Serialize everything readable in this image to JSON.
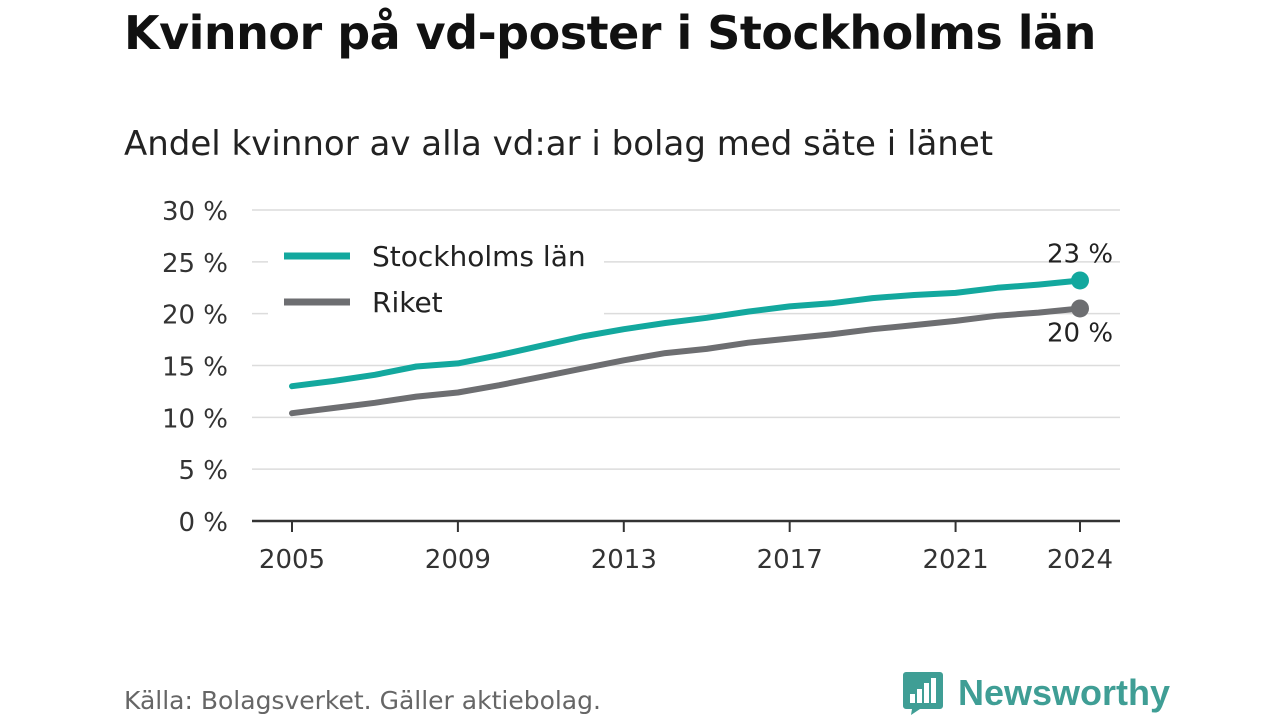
{
  "header": {
    "title": "Kvinnor på vd-poster i Stockholms län",
    "subtitle": "Andel kvinnor av alla vd:ar i bolag med säte i länet"
  },
  "footer": {
    "source": "Källa: Bolagsverket. Gäller aktiebolag.",
    "brand": "Newsworthy",
    "brand_icon": "bar-chart-speech-bubble-icon"
  },
  "chart_data": {
    "type": "line",
    "x": [
      2005,
      2006,
      2007,
      2008,
      2009,
      2010,
      2011,
      2012,
      2013,
      2014,
      2015,
      2016,
      2017,
      2018,
      2019,
      2020,
      2021,
      2022,
      2023,
      2024
    ],
    "series": [
      {
        "name": "Stockholms län",
        "color": "#13a89e",
        "values": [
          13.0,
          13.5,
          14.1,
          14.9,
          15.2,
          16.0,
          16.9,
          17.8,
          18.5,
          19.1,
          19.6,
          20.2,
          20.7,
          21.0,
          21.5,
          21.8,
          22.0,
          22.5,
          22.8,
          23.2
        ],
        "end_label": "23 %"
      },
      {
        "name": "Riket",
        "color": "#6d6e71",
        "values": [
          10.4,
          10.9,
          11.4,
          12.0,
          12.4,
          13.1,
          13.9,
          14.7,
          15.5,
          16.2,
          16.6,
          17.2,
          17.6,
          18.0,
          18.5,
          18.9,
          19.3,
          19.8,
          20.1,
          20.5
        ],
        "end_label": "20 %"
      }
    ],
    "yticks": [
      {
        "value": 0,
        "label": "0 %"
      },
      {
        "value": 5,
        "label": "5 %"
      },
      {
        "value": 10,
        "label": "10 %"
      },
      {
        "value": 15,
        "label": "15 %"
      },
      {
        "value": 20,
        "label": "20 %"
      },
      {
        "value": 25,
        "label": "25 %"
      },
      {
        "value": 30,
        "label": "30 %"
      }
    ],
    "xticks": [
      {
        "value": 2005,
        "label": "2005"
      },
      {
        "value": 2009,
        "label": "2009"
      },
      {
        "value": 2013,
        "label": "2013"
      },
      {
        "value": 2017,
        "label": "2017"
      },
      {
        "value": 2021,
        "label": "2021"
      },
      {
        "value": 2024,
        "label": "2024"
      }
    ],
    "ylim": [
      0,
      30
    ],
    "xlim": [
      2005,
      2024
    ],
    "grid": true,
    "legend": "top-left"
  }
}
